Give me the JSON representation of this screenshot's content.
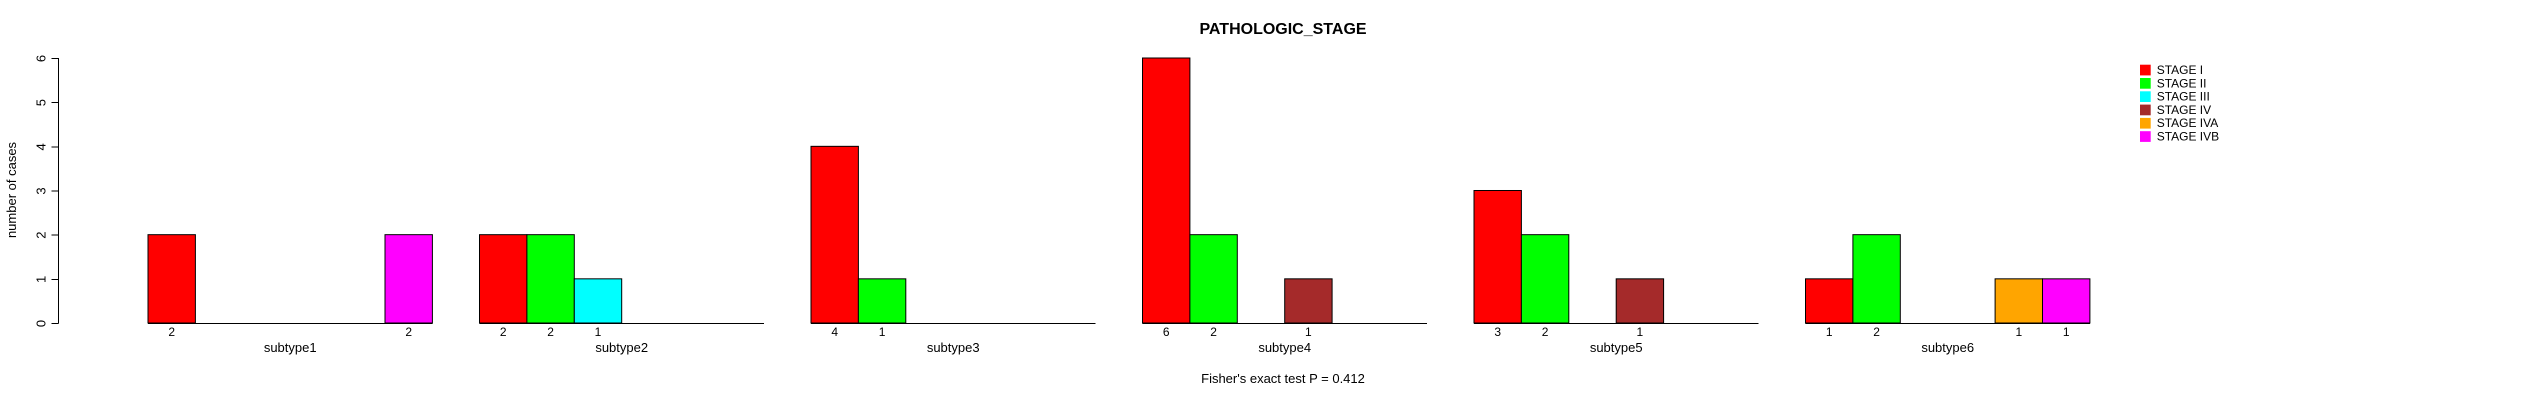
{
  "chart_data": {
    "type": "bar",
    "title": "PATHOLOGIC_STAGE",
    "ylabel": "number of cases",
    "xlabel": "",
    "footer": "Fisher's exact test P = 0.412",
    "ylim": [
      0,
      6
    ],
    "yticks": [
      0,
      1,
      2,
      3,
      4,
      5,
      6
    ],
    "grid": false,
    "legend_position": "top-right",
    "stages": [
      {
        "name": "STAGE I",
        "color": "#FF0000"
      },
      {
        "name": "STAGE II",
        "color": "#00FF00"
      },
      {
        "name": "STAGE III",
        "color": "#00FFFF"
      },
      {
        "name": "STAGE IV",
        "color": "#A52A2A"
      },
      {
        "name": "STAGE IVA",
        "color": "#FFA500"
      },
      {
        "name": "STAGE IVB",
        "color": "#FF00FF"
      }
    ],
    "groups": [
      {
        "label": "subtype1",
        "bars": [
          {
            "stage": "STAGE I",
            "value": 2
          },
          {
            "stage": "STAGE IVB",
            "value": 2
          }
        ]
      },
      {
        "label": "subtype2",
        "bars": [
          {
            "stage": "STAGE I",
            "value": 2
          },
          {
            "stage": "STAGE II",
            "value": 2
          },
          {
            "stage": "STAGE III",
            "value": 1
          }
        ]
      },
      {
        "label": "subtype3",
        "bars": [
          {
            "stage": "STAGE I",
            "value": 4
          },
          {
            "stage": "STAGE II",
            "value": 1
          }
        ]
      },
      {
        "label": "subtype4",
        "bars": [
          {
            "stage": "STAGE I",
            "value": 6
          },
          {
            "stage": "STAGE II",
            "value": 2
          },
          {
            "stage": "STAGE IV",
            "value": 1
          }
        ]
      },
      {
        "label": "subtype5",
        "bars": [
          {
            "stage": "STAGE I",
            "value": 3
          },
          {
            "stage": "STAGE II",
            "value": 2
          },
          {
            "stage": "STAGE IV",
            "value": 1
          }
        ]
      },
      {
        "label": "subtype6",
        "bars": [
          {
            "stage": "STAGE I",
            "value": 1
          },
          {
            "stage": "STAGE II",
            "value": 2
          },
          {
            "stage": "STAGE IVA",
            "value": 1
          },
          {
            "stage": "STAGE IVB",
            "value": 1
          }
        ]
      }
    ]
  }
}
